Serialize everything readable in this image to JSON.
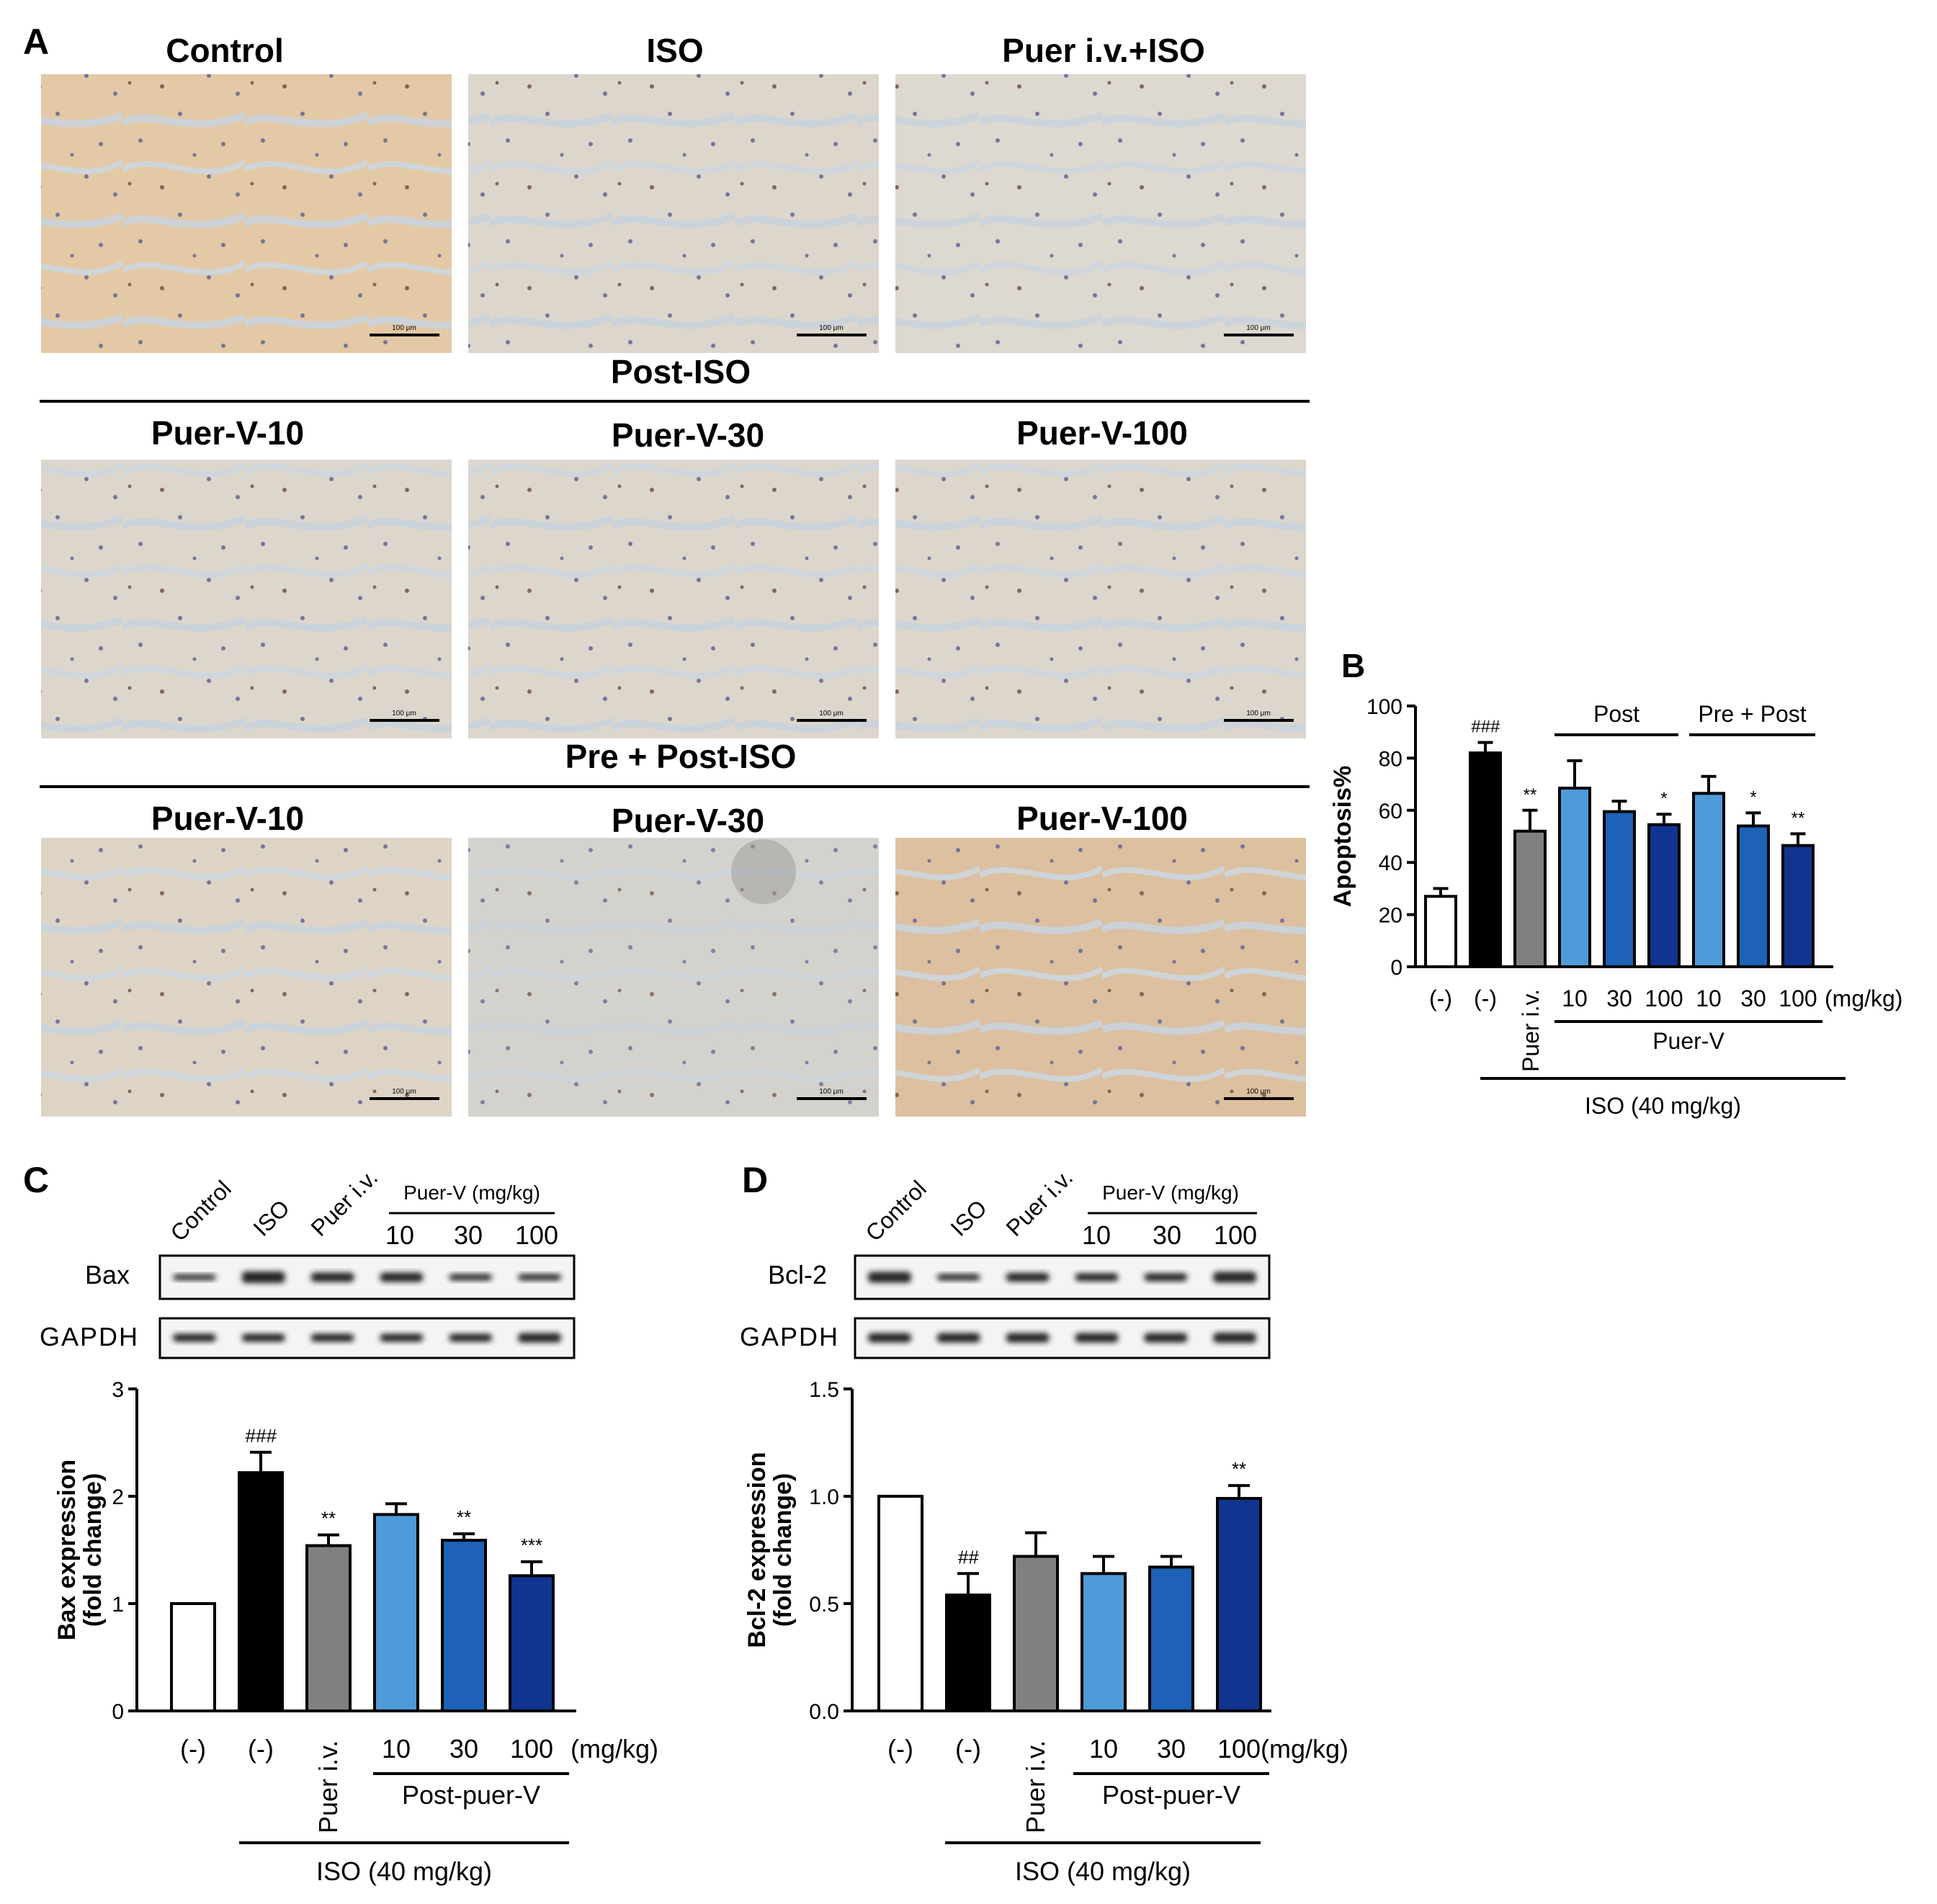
{
  "colors": {
    "black": "#000000",
    "white": "#ffffff",
    "grey": "#808080",
    "light_blue": "#4f9ad8",
    "mid_blue": "#1d62b6",
    "dark_blue": "#11348f"
  },
  "panel_a": {
    "label": "A",
    "images": [
      {
        "title": "Control",
        "scale": "100 μm"
      },
      {
        "title": "ISO",
        "scale": "100 μm"
      },
      {
        "title": "Puer i.v.+ISO",
        "scale": "100 μm"
      },
      {
        "title": "Puer-V-10",
        "scale": "100 μm"
      },
      {
        "title": "Puer-V-30",
        "scale": "100 μm"
      },
      {
        "title": "Puer-V-100",
        "scale": "100 μm"
      },
      {
        "title": "Puer-V-10",
        "scale": "100 μm"
      },
      {
        "title": "Puer-V-30",
        "scale": "100 μm"
      },
      {
        "title": "Puer-V-100",
        "scale": "100 μm"
      }
    ],
    "section_post": "Post-ISO",
    "section_prepost": "Pre + Post-ISO"
  },
  "panel_b": {
    "label": "B"
  },
  "panel_c": {
    "label": "C",
    "blot_lanes": [
      "Control",
      "ISO",
      "Puer i.v."
    ],
    "blot_group": "Puer-V (mg/kg)",
    "blot_doses": [
      "10",
      "30",
      "100"
    ],
    "blot_rows": [
      "Bax",
      "GAPDH"
    ]
  },
  "panel_d": {
    "label": "D",
    "blot_lanes": [
      "Control",
      "ISO",
      "Puer i.v."
    ],
    "blot_group": "Puer-V (mg/kg)",
    "blot_doses": [
      "10",
      "30",
      "100"
    ],
    "blot_rows": [
      "Bcl-2",
      "GAPDH"
    ]
  },
  "chart_data": [
    {
      "type": "bar",
      "panel": "B",
      "ylabel": "Apoptosis%",
      "ylim": [
        0,
        100
      ],
      "yticks": [
        0,
        20,
        40,
        60,
        80,
        100
      ],
      "categories": [
        "(-)",
        "(-)",
        "Puer i.v.",
        "10",
        "30",
        "100",
        "10",
        "30",
        "100"
      ],
      "values": [
        27,
        82,
        52,
        68.5,
        59.5,
        54.5,
        66.5,
        54,
        46.5
      ],
      "errors": [
        3,
        4,
        8,
        10.5,
        4,
        4,
        6.5,
        5,
        4.5
      ],
      "colors": [
        "#ffffff",
        "#000000",
        "#808080",
        "#4f9ad8",
        "#1d62b6",
        "#11348f",
        "#4f9ad8",
        "#1d62b6",
        "#11348f"
      ],
      "annotations": [
        "",
        "###",
        "**",
        "",
        "",
        "*",
        "",
        "*",
        "**"
      ],
      "unit_label": "(mg/kg)",
      "groups": [
        "Post",
        "Pre + Post"
      ],
      "group_label": "Puer-V",
      "treatment_label": "ISO (40 mg/kg)"
    },
    {
      "type": "bar",
      "panel": "C",
      "ylabel": "Bax expression (fold change)",
      "ylabel_lines": [
        "Bax expression",
        "(fold change)"
      ],
      "ylim": [
        0,
        3
      ],
      "yticks": [
        "0",
        "1",
        "2",
        "3"
      ],
      "categories": [
        "(-)",
        "(-)",
        "Puer i.v.",
        "10",
        "30",
        "100"
      ],
      "values": [
        1.0,
        2.22,
        1.54,
        1.83,
        1.59,
        1.26
      ],
      "errors": [
        0,
        0.19,
        0.1,
        0.1,
        0.06,
        0.13
      ],
      "colors": [
        "#ffffff",
        "#000000",
        "#808080",
        "#4f9ad8",
        "#1d62b6",
        "#11348f"
      ],
      "annotations": [
        "",
        "###",
        "**",
        "",
        "**",
        "***"
      ],
      "unit_label": "(mg/kg)",
      "group_label": "Post-puer-V",
      "treatment_label": "ISO (40 mg/kg)"
    },
    {
      "type": "bar",
      "panel": "D",
      "ylabel": "Bcl-2 expression (fold change)",
      "ylabel_lines": [
        "Bcl-2 expression",
        "(fold change)"
      ],
      "ylim": [
        0,
        1.5
      ],
      "yticks": [
        "0.0",
        "0.5",
        "1.0",
        "1.5"
      ],
      "categories": [
        "(-)",
        "(-)",
        "Puer i.v.",
        "10",
        "30",
        "100"
      ],
      "values": [
        1.0,
        0.54,
        0.72,
        0.64,
        0.67,
        0.99
      ],
      "errors": [
        0,
        0.1,
        0.11,
        0.08,
        0.05,
        0.06
      ],
      "colors": [
        "#ffffff",
        "#000000",
        "#808080",
        "#4f9ad8",
        "#1d62b6",
        "#11348f"
      ],
      "annotations": [
        "",
        "##",
        "",
        "",
        "",
        "**"
      ],
      "unit_label": "(mg/kg)",
      "group_label": "Post-puer-V",
      "treatment_label": "ISO (40 mg/kg)"
    }
  ]
}
